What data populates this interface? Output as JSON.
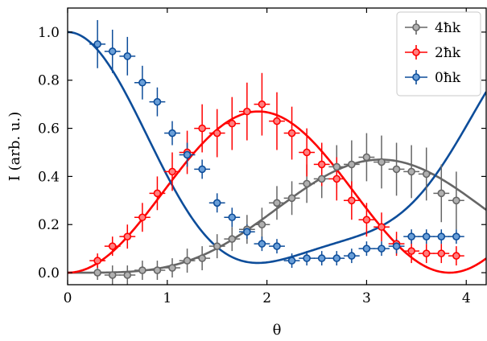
{
  "chart_data": {
    "type": "scatter",
    "xlabel": "θ",
    "ylabel": "I (arb. u.)",
    "xlim": [
      0,
      4.2
    ],
    "ylim": [
      -0.05,
      1.1
    ],
    "x_ticks": [
      0,
      1,
      2,
      3,
      4
    ],
    "y_ticks": [
      0.0,
      0.2,
      0.4,
      0.6,
      0.8,
      1.0
    ],
    "x_tick_labels": [
      "0",
      "1",
      "2",
      "3",
      "4"
    ],
    "y_tick_labels": [
      "0.0",
      "0.2",
      "0.4",
      "0.6",
      "0.8",
      "1.0"
    ],
    "grid": false,
    "legend_position": "top-right",
    "series": [
      {
        "name": "4ħk",
        "color": "#666666",
        "fill": "#b0b0b0",
        "x": [
          0.3,
          0.45,
          0.6,
          0.75,
          0.9,
          1.05,
          1.2,
          1.35,
          1.5,
          1.65,
          1.8,
          1.95,
          2.1,
          2.25,
          2.4,
          2.55,
          2.7,
          2.85,
          3.0,
          3.15,
          3.3,
          3.45,
          3.6,
          3.75,
          3.9
        ],
        "y": [
          0.0,
          -0.01,
          -0.01,
          0.01,
          0.01,
          0.02,
          0.05,
          0.06,
          0.11,
          0.14,
          0.18,
          0.2,
          0.29,
          0.31,
          0.37,
          0.39,
          0.44,
          0.45,
          0.48,
          0.46,
          0.43,
          0.42,
          0.41,
          0.33,
          0.3
        ],
        "xerr": 0.08,
        "yerr": [
          0.03,
          0.04,
          0.04,
          0.04,
          0.04,
          0.04,
          0.05,
          0.05,
          0.05,
          0.05,
          0.06,
          0.07,
          0.07,
          0.07,
          0.08,
          0.08,
          0.09,
          0.1,
          0.1,
          0.11,
          0.11,
          0.11,
          0.11,
          0.12,
          0.12
        ]
      },
      {
        "name": "2ħk",
        "color": "#ff0000",
        "fill": "#ff8080",
        "x": [
          0.3,
          0.45,
          0.6,
          0.75,
          0.9,
          1.05,
          1.2,
          1.35,
          1.5,
          1.65,
          1.8,
          1.95,
          2.1,
          2.25,
          2.4,
          2.55,
          2.7,
          2.85,
          3.0,
          3.15,
          3.3,
          3.45,
          3.6,
          3.75,
          3.9
        ],
        "y": [
          0.05,
          0.11,
          0.15,
          0.23,
          0.33,
          0.42,
          0.5,
          0.6,
          0.58,
          0.62,
          0.67,
          0.7,
          0.63,
          0.58,
          0.5,
          0.45,
          0.39,
          0.3,
          0.22,
          0.19,
          0.12,
          0.09,
          0.08,
          0.08,
          0.07
        ],
        "xerr": 0.08,
        "yerr": [
          0.03,
          0.04,
          0.05,
          0.06,
          0.07,
          0.08,
          0.09,
          0.1,
          0.1,
          0.11,
          0.12,
          0.13,
          0.12,
          0.11,
          0.1,
          0.09,
          0.09,
          0.08,
          0.07,
          0.06,
          0.05,
          0.05,
          0.04,
          0.04,
          0.04
        ]
      },
      {
        "name": "0ħk",
        "color": "#0d4d9a",
        "fill": "#6a9fd8",
        "x": [
          0.3,
          0.45,
          0.6,
          0.75,
          0.9,
          1.05,
          1.2,
          1.35,
          1.5,
          1.65,
          1.8,
          1.95,
          2.1,
          2.25,
          2.4,
          2.55,
          2.7,
          2.85,
          3.0,
          3.15,
          3.3,
          3.45,
          3.6,
          3.75,
          3.9
        ],
        "y": [
          0.95,
          0.92,
          0.9,
          0.79,
          0.71,
          0.58,
          0.49,
          0.43,
          0.29,
          0.23,
          0.17,
          0.12,
          0.11,
          0.05,
          0.06,
          0.06,
          0.06,
          0.07,
          0.1,
          0.1,
          0.11,
          0.15,
          0.15,
          0.15,
          0.15
        ],
        "xerr": 0.08,
        "yerr": [
          0.1,
          0.09,
          0.08,
          0.07,
          0.06,
          0.05,
          0.05,
          0.04,
          0.04,
          0.04,
          0.03,
          0.03,
          0.03,
          0.03,
          0.03,
          0.03,
          0.03,
          0.03,
          0.03,
          0.03,
          0.03,
          0.03,
          0.03,
          0.03,
          0.03
        ]
      }
    ]
  }
}
